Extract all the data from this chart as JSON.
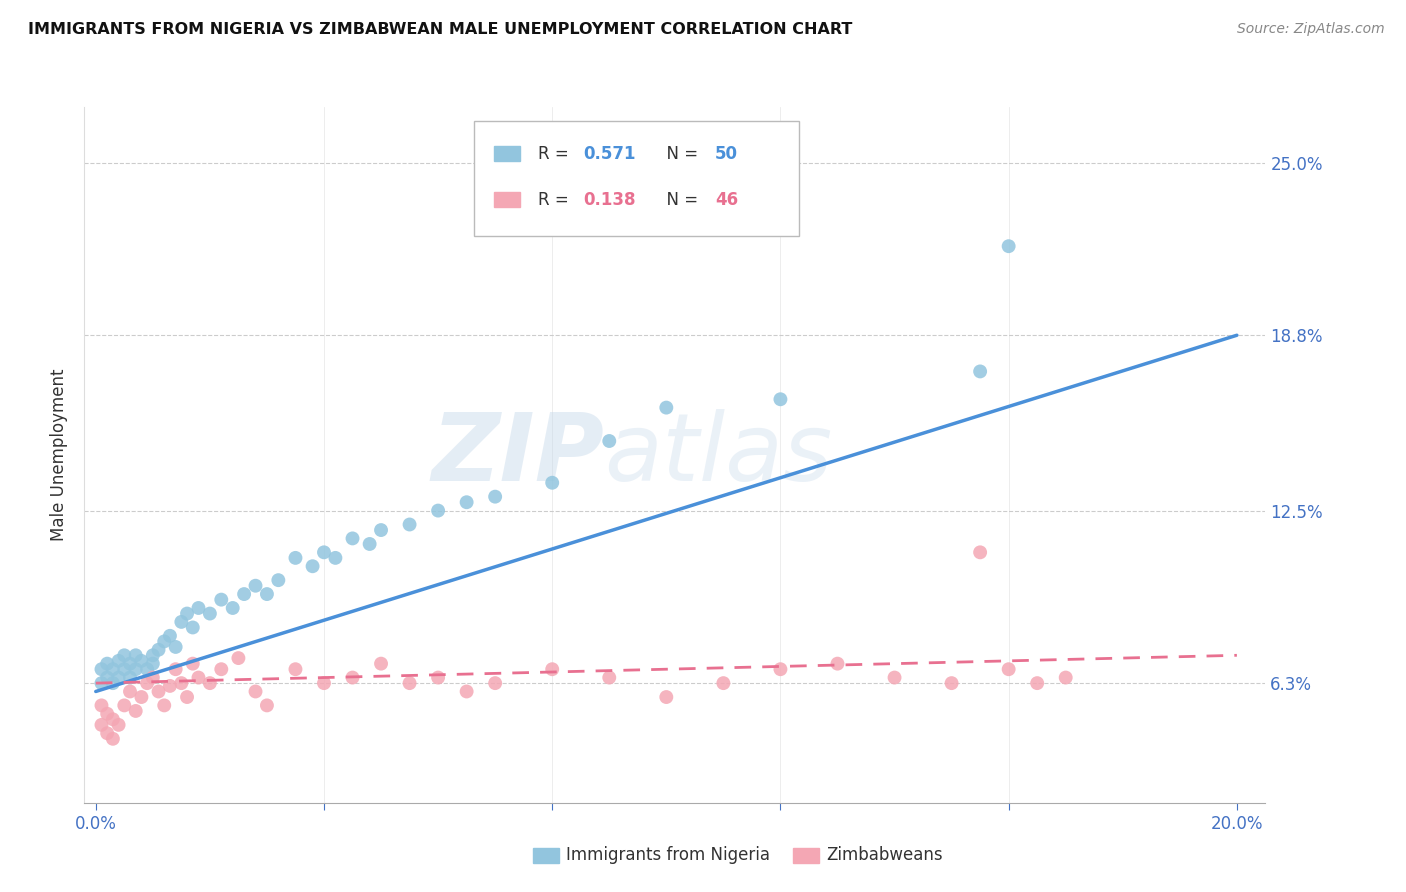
{
  "title": "IMMIGRANTS FROM NIGERIA VS ZIMBABWEAN MALE UNEMPLOYMENT CORRELATION CHART",
  "source": "Source: ZipAtlas.com",
  "ylabel": "Male Unemployment",
  "ytick_labels": [
    "6.3%",
    "12.5%",
    "18.8%",
    "25.0%"
  ],
  "ytick_values": [
    0.063,
    0.125,
    0.188,
    0.25
  ],
  "xtick_values": [
    0.0,
    0.04,
    0.08,
    0.12,
    0.16,
    0.2
  ],
  "xtick_labels": [
    "0.0%",
    "",
    "",
    "",
    "",
    "20.0%"
  ],
  "xlim": [
    -0.002,
    0.205
  ],
  "ylim": [
    0.02,
    0.27
  ],
  "legend_label1": "Immigrants from Nigeria",
  "legend_label2": "Zimbabweans",
  "color_blue": "#92C5DE",
  "color_pink": "#F4A7B4",
  "color_blue_line": "#4A90D9",
  "color_pink_line": "#E87090",
  "watermark_zip": "ZIP",
  "watermark_atlas": "atlas",
  "nigeria_x": [
    0.001,
    0.001,
    0.002,
    0.002,
    0.003,
    0.003,
    0.004,
    0.004,
    0.005,
    0.005,
    0.006,
    0.006,
    0.007,
    0.007,
    0.008,
    0.009,
    0.01,
    0.01,
    0.011,
    0.012,
    0.013,
    0.014,
    0.015,
    0.016,
    0.017,
    0.018,
    0.02,
    0.022,
    0.024,
    0.026,
    0.028,
    0.03,
    0.032,
    0.035,
    0.038,
    0.04,
    0.042,
    0.045,
    0.048,
    0.05,
    0.055,
    0.06,
    0.065,
    0.07,
    0.08,
    0.09,
    0.1,
    0.12,
    0.155,
    0.16
  ],
  "nigeria_y": [
    0.063,
    0.068,
    0.065,
    0.07,
    0.063,
    0.068,
    0.065,
    0.071,
    0.068,
    0.073,
    0.065,
    0.07,
    0.068,
    0.073,
    0.071,
    0.068,
    0.073,
    0.07,
    0.075,
    0.078,
    0.08,
    0.076,
    0.085,
    0.088,
    0.083,
    0.09,
    0.088,
    0.093,
    0.09,
    0.095,
    0.098,
    0.095,
    0.1,
    0.108,
    0.105,
    0.11,
    0.108,
    0.115,
    0.113,
    0.118,
    0.12,
    0.125,
    0.128,
    0.13,
    0.135,
    0.15,
    0.162,
    0.165,
    0.175,
    0.22
  ],
  "zimbabwe_x": [
    0.001,
    0.001,
    0.002,
    0.002,
    0.003,
    0.003,
    0.004,
    0.005,
    0.006,
    0.007,
    0.008,
    0.009,
    0.01,
    0.011,
    0.012,
    0.013,
    0.014,
    0.015,
    0.016,
    0.017,
    0.018,
    0.02,
    0.022,
    0.025,
    0.028,
    0.03,
    0.035,
    0.04,
    0.045,
    0.05,
    0.055,
    0.06,
    0.065,
    0.07,
    0.08,
    0.09,
    0.1,
    0.11,
    0.12,
    0.13,
    0.14,
    0.15,
    0.155,
    0.16,
    0.165,
    0.17
  ],
  "zimbabwe_y": [
    0.055,
    0.048,
    0.052,
    0.045,
    0.05,
    0.043,
    0.048,
    0.055,
    0.06,
    0.053,
    0.058,
    0.063,
    0.065,
    0.06,
    0.055,
    0.062,
    0.068,
    0.063,
    0.058,
    0.07,
    0.065,
    0.063,
    0.068,
    0.072,
    0.06,
    0.055,
    0.068,
    0.063,
    0.065,
    0.07,
    0.063,
    0.065,
    0.06,
    0.063,
    0.068,
    0.065,
    0.058,
    0.063,
    0.068,
    0.07,
    0.065,
    0.063,
    0.11,
    0.068,
    0.063,
    0.065
  ],
  "nig_line_x": [
    0.0,
    0.2
  ],
  "nig_line_y": [
    0.06,
    0.188
  ],
  "zim_line_x": [
    0.0,
    0.2
  ],
  "zim_line_y": [
    0.063,
    0.073
  ]
}
